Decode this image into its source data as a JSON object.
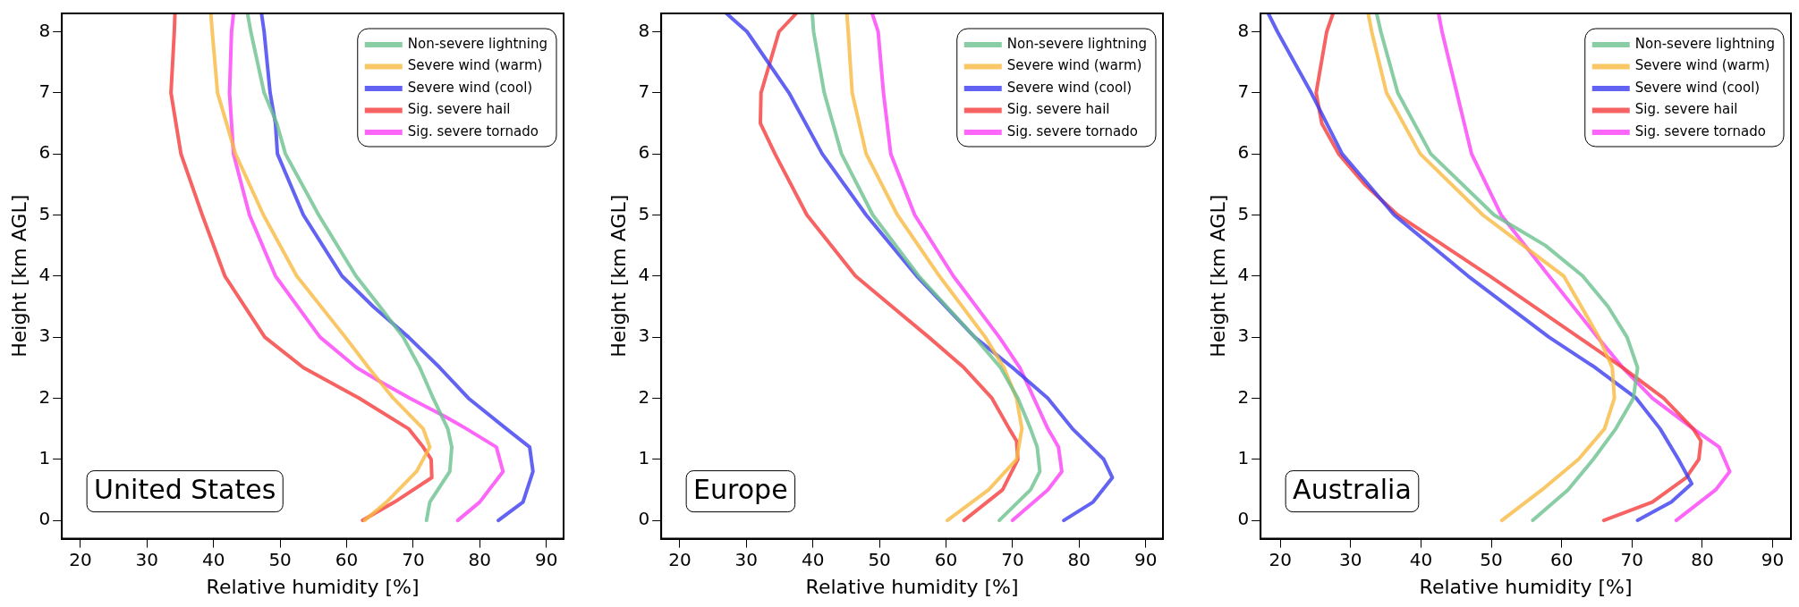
{
  "chart_data": [
    {
      "type": "line",
      "xlabel": "Relative humidity [%]",
      "ylabel": "Height [km AGL]",
      "annotations": [
        "United States"
      ],
      "legend": "top right",
      "marker": "none",
      "line_style": "solid",
      "grid": false,
      "xlim": [
        17.2,
        92.6
      ],
      "xticks": [
        20,
        30,
        40,
        50,
        60,
        70,
        80,
        90
      ],
      "ylim": [
        -0.3,
        8.3
      ],
      "yticks": [
        0,
        1,
        2,
        3,
        4,
        5,
        6,
        7,
        8
      ],
      "series": [
        {
          "name": "Non-severe lightning",
          "color": "#6cc18f",
          "x": [
            72.0,
            72.5,
            75.5,
            75.8,
            75.2,
            73,
            71,
            68.5,
            65,
            61.4,
            55.8,
            50.8,
            49.5,
            47.6,
            45.6,
            45.1
          ],
          "values": [
            0,
            0.3,
            0.8,
            1.2,
            1.5,
            2,
            2.5,
            3,
            3.5,
            4,
            5,
            6,
            6.5,
            7,
            8,
            8.3
          ]
        },
        {
          "name": "Severe wind (warm)",
          "color": "#f9b940",
          "x": [
            62.7,
            66,
            70.5,
            72.5,
            71.5,
            67,
            63.3,
            59.8,
            52.5,
            47.5,
            43.3,
            40.6,
            39.8,
            39.6
          ],
          "values": [
            0,
            0.3,
            0.8,
            1.2,
            1.5,
            2,
            2.5,
            3,
            4,
            5,
            6,
            7,
            8,
            8.3
          ]
        },
        {
          "name": "Severe wind (cool)",
          "color": "#3c3cf0",
          "x": [
            82.8,
            86.5,
            88,
            87.5,
            84,
            78.3,
            74,
            69.3,
            64,
            59.3,
            53.5,
            49.6,
            49.3,
            48.5,
            47.6,
            47.2
          ],
          "values": [
            0,
            0.3,
            0.8,
            1.2,
            1.5,
            2,
            2.5,
            3,
            3.5,
            4,
            5,
            6,
            6.5,
            7,
            8,
            8.3
          ]
        },
        {
          "name": "Sig. severe hail",
          "color": "#f53c3c",
          "x": [
            62.4,
            67.2,
            72.8,
            72.7,
            71.5,
            69.3,
            61.9,
            53.5,
            47.7,
            41.7,
            38.3,
            35.1,
            33.6,
            34.1,
            34.2
          ],
          "values": [
            0,
            0.3,
            0.7,
            1,
            1.2,
            1.5,
            2,
            2.5,
            3,
            4,
            5,
            6,
            7,
            8,
            8.3
          ]
        },
        {
          "name": "Sig. severe tornado",
          "color": "#fb40f8",
          "x": [
            76.7,
            80,
            83.5,
            82.5,
            78,
            74.8,
            69.5,
            64.6,
            61.5,
            56,
            49.3,
            45.4,
            43,
            42.4,
            42.7,
            43
          ],
          "values": [
            0,
            0.3,
            0.8,
            1.2,
            1.5,
            1.7,
            2,
            2.3,
            2.5,
            3,
            4,
            5,
            6,
            7,
            8,
            8.3
          ]
        }
      ]
    },
    {
      "type": "line",
      "xlabel": "Relative humidity [%]",
      "ylabel": "Height [km AGL]",
      "annotations": [
        "Europe"
      ],
      "legend": "top right",
      "marker": "none",
      "line_style": "solid",
      "grid": false,
      "xlim": [
        17.2,
        92.6
      ],
      "xticks": [
        20,
        30,
        40,
        50,
        60,
        70,
        80,
        90
      ],
      "ylim": [
        -0.3,
        8.3
      ],
      "yticks": [
        0,
        1,
        2,
        3,
        4,
        5,
        6,
        7,
        8
      ],
      "series": [
        {
          "name": "Non-severe lightning",
          "color": "#6cc18f",
          "x": [
            68.0,
            72.7,
            74.1,
            73.7,
            72.7,
            70.8,
            68.2,
            64.3,
            55.9,
            49,
            44.3,
            41.7,
            40.1,
            39.9
          ],
          "values": [
            0,
            0.5,
            0.8,
            1.2,
            1.5,
            2,
            2.5,
            3,
            4,
            5,
            6,
            7,
            8,
            8.3
          ]
        },
        {
          "name": "Severe wind (warm)",
          "color": "#f9b940",
          "x": [
            60.2,
            66.4,
            70.6,
            71.4,
            70.6,
            68.7,
            65.9,
            59,
            52.7,
            48,
            45.9,
            45.3,
            45.1
          ],
          "values": [
            0,
            0.5,
            1,
            1.5,
            2,
            2.5,
            3,
            4,
            5,
            6,
            7,
            8,
            8.3
          ]
        },
        {
          "name": "Severe wind (cool)",
          "color": "#3c3cf0",
          "x": [
            77.7,
            82.1,
            85,
            83.7,
            79,
            75.3,
            70,
            64.3,
            55.6,
            48,
            41.4,
            36.4,
            30.1,
            27
          ],
          "values": [
            0,
            0.3,
            0.7,
            1,
            1.5,
            2,
            2.5,
            3,
            4,
            5,
            6,
            7,
            8,
            8.3
          ]
        },
        {
          "name": "Sig. severe hail",
          "color": "#f53c3c",
          "x": [
            62.7,
            68.5,
            70.8,
            70.6,
            69.5,
            66.9,
            62.7,
            57.4,
            46.4,
            39.1,
            34.3,
            32.1,
            32.2,
            34.9,
            37.5
          ],
          "values": [
            0,
            0.5,
            1,
            1.3,
            1.5,
            2,
            2.5,
            3,
            4,
            5,
            6,
            6.5,
            7,
            8,
            8.3
          ]
        },
        {
          "name": "Sig. severe tornado",
          "color": "#fb40f8",
          "x": [
            70,
            75.3,
            77.4,
            76.9,
            75.3,
            73.2,
            71.1,
            68,
            61.1,
            55.3,
            51.7,
            50.6,
            49.8,
            48.9
          ],
          "values": [
            0,
            0.5,
            0.8,
            1.2,
            1.5,
            2,
            2.5,
            3,
            4,
            5,
            6,
            7,
            8,
            8.3
          ]
        }
      ]
    },
    {
      "type": "line",
      "xlabel": "Relative humidity [%]",
      "ylabel": "Height [km AGL]",
      "annotations": [
        "Australia"
      ],
      "legend": "top right",
      "marker": "none",
      "line_style": "solid",
      "grid": false,
      "xlim": [
        17.2,
        92.6
      ],
      "xticks": [
        20,
        30,
        40,
        50,
        60,
        70,
        80,
        90
      ],
      "ylim": [
        -0.3,
        8.3
      ],
      "yticks": [
        0,
        1,
        2,
        3,
        4,
        5,
        6,
        7,
        8
      ],
      "series": [
        {
          "name": "Non-severe lightning",
          "color": "#6cc18f",
          "x": [
            55.9,
            60.9,
            64.5,
            67.7,
            70.2,
            70.8,
            69.3,
            66.6,
            63,
            57.7,
            50.4,
            41.4,
            36.7,
            34.3,
            33.7
          ],
          "values": [
            0,
            0.5,
            1,
            1.5,
            2,
            2.5,
            3,
            3.5,
            4,
            4.5,
            5,
            6,
            7,
            8,
            8.3
          ]
        },
        {
          "name": "Severe wind (warm)",
          "color": "#f9b940",
          "x": [
            51.5,
            57.2,
            62.4,
            66.1,
            67.5,
            67.2,
            65.3,
            60.3,
            48.8,
            39.9,
            35.1,
            33,
            32.5
          ],
          "values": [
            0,
            0.5,
            1,
            1.5,
            2,
            2.5,
            3,
            4,
            5,
            6,
            7,
            8,
            8.3
          ]
        },
        {
          "name": "Severe wind (cool)",
          "color": "#3c3cf0",
          "x": [
            70.8,
            75.6,
            78.5,
            76.6,
            74,
            70.6,
            64.8,
            58.2,
            46.7,
            36.2,
            28.8,
            24.4,
            19.6,
            18.3
          ],
          "values": [
            0,
            0.3,
            0.6,
            1,
            1.5,
            2,
            2.5,
            3,
            4,
            5,
            6,
            7,
            8,
            8.3
          ]
        },
        {
          "name": "Sig. severe hail",
          "color": "#f53c3c",
          "x": [
            66,
            72.9,
            77.7,
            79.5,
            79.8,
            78.7,
            74.5,
            68.7,
            62.4,
            49.8,
            36.7,
            32,
            28.3,
            25.9,
            25.1,
            26.6,
            27.5
          ],
          "values": [
            0,
            0.3,
            0.7,
            1,
            1.3,
            1.5,
            2,
            2.5,
            3,
            4,
            5,
            5.5,
            6,
            6.5,
            7,
            8,
            8.3
          ]
        },
        {
          "name": "Sig. severe tornado",
          "color": "#fb40f8",
          "x": [
            76.3,
            81.9,
            83.9,
            82.4,
            78.7,
            72.9,
            68.7,
            65.1,
            58.2,
            51.4,
            47.2,
            45.1,
            43,
            42.5
          ],
          "values": [
            0,
            0.5,
            0.8,
            1.2,
            1.5,
            2,
            2.5,
            3,
            4,
            5,
            6,
            7,
            8,
            8.3
          ]
        }
      ]
    }
  ]
}
